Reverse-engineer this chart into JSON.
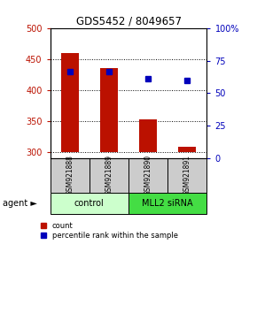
{
  "title": "GDS5452 / 8049657",
  "samples": [
    "GSM921888",
    "GSM921889",
    "GSM921890",
    "GSM921891"
  ],
  "bar_values": [
    460,
    435,
    353,
    308
  ],
  "bar_baseline": 300,
  "blue_dot_values": [
    430,
    430,
    418,
    415
  ],
  "ylim_left": [
    290,
    500
  ],
  "ylim_right": [
    0,
    100
  ],
  "yticks_left": [
    300,
    350,
    400,
    450,
    500
  ],
  "yticks_right": [
    0,
    25,
    50,
    75,
    100
  ],
  "bar_color": "#bb1100",
  "dot_color": "#0000bb",
  "groups": [
    {
      "label": "control",
      "samples": [
        0,
        1
      ],
      "color": "#ccffcc"
    },
    {
      "label": "MLL2 siRNA",
      "samples": [
        2,
        3
      ],
      "color": "#44dd44"
    }
  ],
  "sample_row_color": "#cccccc",
  "legend_count_label": "count",
  "legend_pct_label": "percentile rank within the sample",
  "agent_label": "agent"
}
